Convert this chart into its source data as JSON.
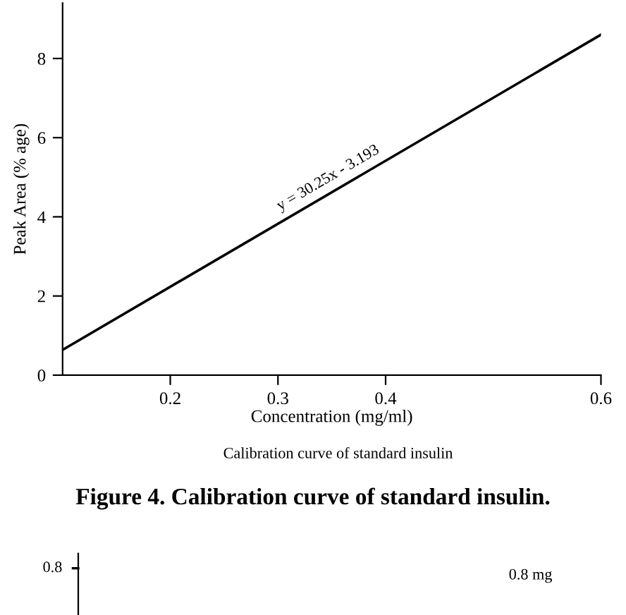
{
  "chart_data": [
    {
      "type": "line",
      "xlabel": "Concentration (mg/ml)",
      "ylabel": "Peak Area (% age)",
      "x": [
        0.1,
        0.6
      ],
      "series": [
        {
          "color": "#000000",
          "values": [
            0.64,
            8.6
          ]
        }
      ],
      "xlim": [
        0.1,
        0.6
      ],
      "xticks": [
        0.2,
        0.3,
        0.4,
        0.6
      ],
      "ylim": [
        0,
        9.4
      ],
      "yticks": [
        0,
        2,
        4,
        6,
        8
      ],
      "grid": false,
      "legend": false,
      "marker": "none",
      "line_style": "solid",
      "annotations": [
        "y = 30.25x - 3.193",
        "Calibration curve of standard insulin",
        "Figure 4. Calibration curve of standard insulin."
      ]
    },
    {
      "type": "other",
      "annotations": [
        "0.8",
        "0.8 mg"
      ]
    }
  ]
}
